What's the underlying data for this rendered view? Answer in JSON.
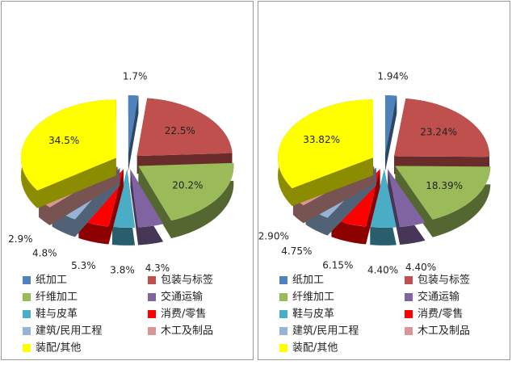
{
  "chart_data": [
    {
      "type": "pie",
      "categories": [
        "纸加工",
        "包装与标签",
        "纤维加工",
        "交通运输",
        "鞋与皮革",
        "消费/零售",
        "建筑/民用工程",
        "木工及制品",
        "装配/其他"
      ],
      "values": [
        1.7,
        22.5,
        20.2,
        4.3,
        3.8,
        5.3,
        4.8,
        2.9,
        34.5
      ],
      "value_labels": [
        "1.7%",
        "22.5%",
        "20.2%",
        "4.3%",
        "3.8%",
        "5.3%",
        "4.8%",
        "2.9%",
        "34.5%"
      ],
      "colors": [
        "#4f81bd",
        "#c0504d",
        "#9bbb59",
        "#8064a2",
        "#4bacc6",
        "#ff0000",
        "#95b3d7",
        "#d99694",
        "#ffff00"
      ]
    },
    {
      "type": "pie",
      "categories": [
        "纸加工",
        "包装与标签",
        "纤维加工",
        "交通运输",
        "鞋与皮革",
        "消费/零售",
        "建筑/民用工程",
        "木工及制品",
        "装配/其他"
      ],
      "values": [
        1.94,
        23.24,
        18.39,
        4.4,
        4.4,
        6.15,
        4.75,
        2.9,
        33.82
      ],
      "value_labels": [
        "1.94%",
        "23.24%",
        "18.39%",
        "4.40%",
        "4.40%",
        "6.15%",
        "4.75%",
        "2.90%",
        "33.82%"
      ],
      "colors": [
        "#4f81bd",
        "#c0504d",
        "#9bbb59",
        "#8064a2",
        "#4bacc6",
        "#ff0000",
        "#95b3d7",
        "#d99694",
        "#ffff00"
      ]
    }
  ]
}
